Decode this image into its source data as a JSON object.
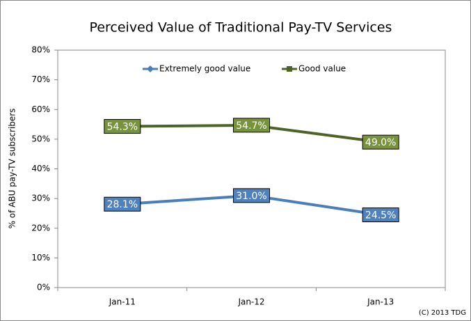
{
  "chart_data": {
    "type": "line",
    "title": "Perceived Value of Traditional Pay-TV Services",
    "y_label": "% of ABU pay-TV subscribers",
    "credit": "(C) 2013 TDG",
    "categories": [
      "Jan-11",
      "Jan-12",
      "Jan-13"
    ],
    "series": [
      {
        "name": "Extremely good value",
        "color": "#4a7ebb",
        "label_fill": "#4f81bd",
        "marker": "diamond",
        "values": [
          28.1,
          31.0,
          24.5
        ],
        "value_labels": [
          "28.1%",
          "31.0%",
          "24.5%"
        ]
      },
      {
        "name": "Good value",
        "color": "#4f6228",
        "label_fill": "#77933c",
        "marker": "square",
        "values": [
          54.3,
          54.7,
          49.0
        ],
        "value_labels": [
          "54.3%",
          "54.7%",
          "49.0%"
        ]
      }
    ],
    "ylim": [
      0,
      80
    ],
    "yticks": [
      {
        "value": 0,
        "label": "0%"
      },
      {
        "value": 10,
        "label": "10%"
      },
      {
        "value": 20,
        "label": "20%"
      },
      {
        "value": 30,
        "label": "30%"
      },
      {
        "value": 40,
        "label": "40%"
      },
      {
        "value": 50,
        "label": "50%"
      },
      {
        "value": 60,
        "label": "60%"
      },
      {
        "value": 70,
        "label": "70%"
      },
      {
        "value": 80,
        "label": "80%"
      }
    ],
    "grid": false,
    "legend": "top"
  }
}
